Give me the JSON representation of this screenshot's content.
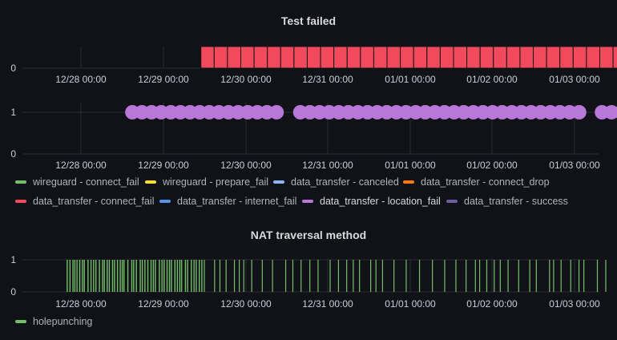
{
  "chart_data": [
    {
      "type": "bar",
      "title": "Test failed",
      "x_range": [
        "12/27 20:00",
        "12/3 19:00"
      ],
      "x_ticks": [
        "12/28 00:00",
        "12/29 00:00",
        "12/30 00:00",
        "12/31 00:00",
        "01/01 00:00",
        "01/02 00:00",
        "01/03 00:00"
      ],
      "y_ticks": [
        "0"
      ],
      "series": [
        {
          "name": "data_transfer - connect_fail",
          "color": "#f2495c",
          "bars_start": "12/29 11:00",
          "bars_end": "01/03 19:00",
          "bar_count": 33,
          "value": 1
        }
      ]
    },
    {
      "type": "scatter",
      "title": "",
      "x_ticks": [
        "12/28 00:00",
        "12/29 00:00",
        "12/30 00:00",
        "12/31 00:00",
        "01/01 00:00",
        "01/02 00:00",
        "01/03 00:00"
      ],
      "y_ticks": [
        "1",
        "0"
      ],
      "ylim": [
        0,
        1
      ],
      "series": [
        {
          "name": "data_transfer - location_fail",
          "color": "#b877d9",
          "value": 1,
          "present_intervals": [
            [
              "12/28 15:00",
              "12/30 10:00"
            ],
            [
              "12/30 16:00",
              "01/03 04:00"
            ],
            [
              "01/03 08:00",
              "01/03 19:00"
            ]
          ]
        }
      ],
      "legend": {
        "placement": "bottom",
        "items": [
          {
            "label": "wireguard - connect_fail",
            "color": "#73bf69"
          },
          {
            "label": "wireguard - prepare_fail",
            "color": "#fade2a"
          },
          {
            "label": "data_transfer - canceled",
            "color": "#8ab8ff"
          },
          {
            "label": "data_transfer - connect_drop",
            "color": "#ff780a"
          },
          {
            "label": "data_transfer - connect_fail",
            "color": "#f2495c"
          },
          {
            "label": "data_transfer - internet_fail",
            "color": "#5794f2"
          },
          {
            "label": "data_transfer - location_fail",
            "color": "#b877d9"
          },
          {
            "label": "data_transfer - success",
            "color": "#705da0"
          }
        ]
      }
    },
    {
      "type": "bar",
      "title": "NAT traversal method",
      "x_ticks": [
        "12/28 00:00",
        "12/29 00:00",
        "12/30 00:00",
        "12/31 00:00",
        "01/01 00:00",
        "01/02 00:00",
        "01/03 00:00"
      ],
      "y_ticks": [
        "1",
        "0"
      ],
      "ylim": [
        0,
        1
      ],
      "series": [
        {
          "name": "holepunching",
          "color": "#73bf69",
          "value": 1,
          "dense_interval": [
            "12/27 20:00",
            "12/29 12:00"
          ],
          "sparse_interval": [
            "12/29 12:00",
            "01/03 19:00"
          ]
        }
      ],
      "legend": {
        "placement": "bottom",
        "items": [
          {
            "label": "holepunching",
            "color": "#73bf69"
          }
        ]
      }
    }
  ]
}
